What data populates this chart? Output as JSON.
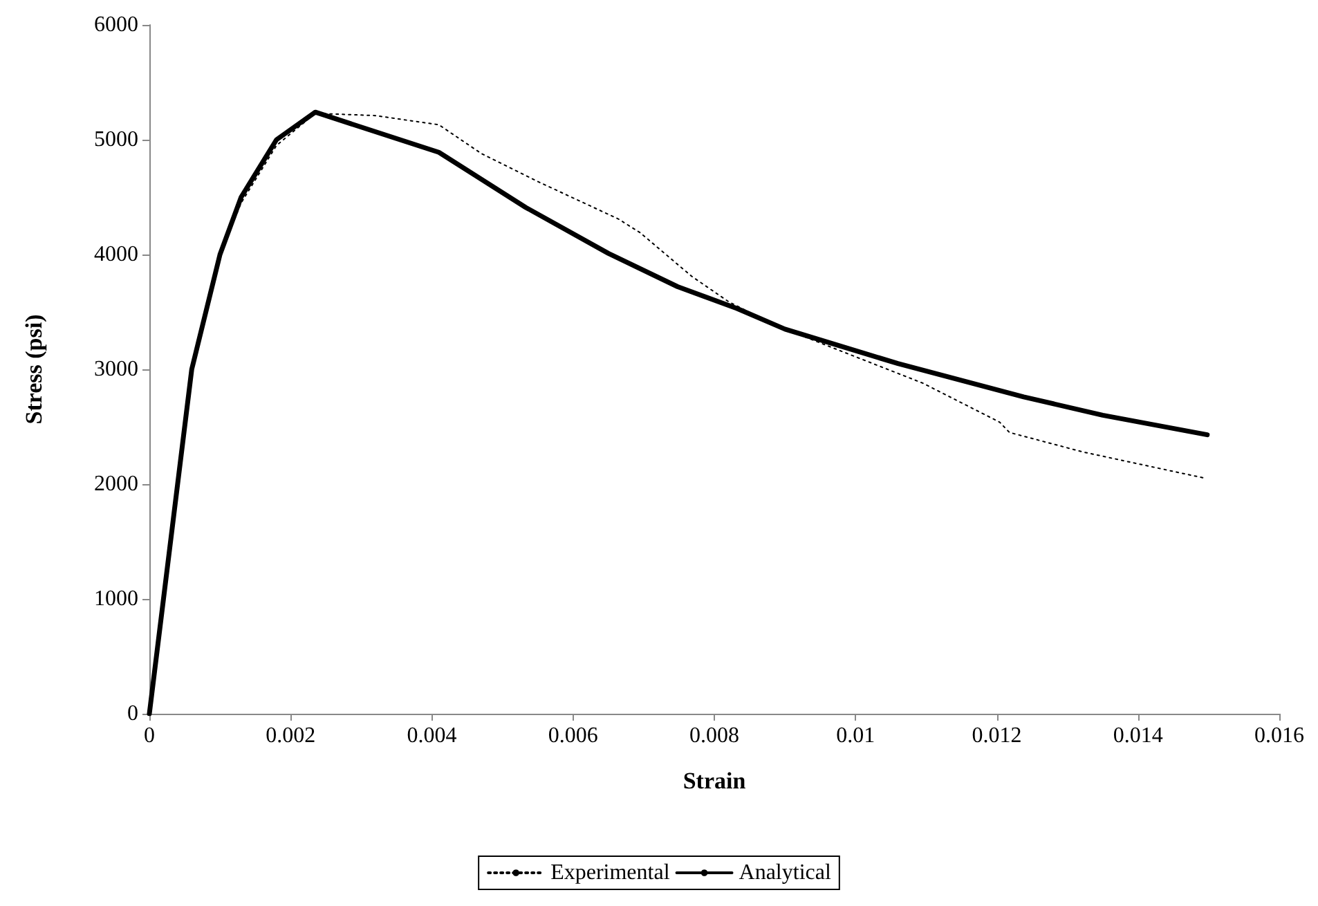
{
  "chart_data": {
    "type": "line",
    "xlabel": "Strain",
    "ylabel": "Stress (psi)",
    "xlim": [
      0,
      0.016
    ],
    "xticks": [
      0,
      0.002,
      0.004,
      0.006,
      0.008,
      0.01,
      0.012,
      0.014,
      0.016
    ],
    "ylim": [
      0,
      6000
    ],
    "yticks": [
      0,
      1000,
      2000,
      3000,
      4000,
      5000,
      6000
    ],
    "grid": false,
    "legend": "bottom",
    "marker": "none",
    "series": [
      {
        "name": "Experimental",
        "color": "#000000",
        "line_style": "dotted",
        "x": [
          0,
          0.0002,
          0.0004,
          0.0006,
          0.001,
          0.0013,
          0.0018,
          0.00235,
          0.0032,
          0.0041,
          0.0047,
          0.00552,
          0.00664,
          0.00695,
          0.00768,
          0.0082,
          0.0088,
          0.0095,
          0.01095,
          0.01204,
          0.01218,
          0.01322,
          0.01496
        ],
        "values": [
          0,
          1000,
          2000,
          3000,
          4000,
          4450,
          4950,
          5230,
          5210,
          5130,
          4880,
          4630,
          4310,
          4190,
          3810,
          3590,
          3400,
          3230,
          2880,
          2540,
          2450,
          2280,
          2050
        ]
      },
      {
        "name": "Analytical",
        "color": "#000000",
        "line_style": "solid",
        "x": [
          0,
          0.0002,
          0.0004,
          0.0006,
          0.001,
          0.0013,
          0.0018,
          0.00235,
          0.0041,
          0.00533,
          0.0065,
          0.00748,
          0.00832,
          0.009,
          0.0106,
          0.01238,
          0.0135,
          0.01498
        ],
        "values": [
          0,
          1000,
          2000,
          3000,
          4000,
          4500,
          5000,
          5240,
          4890,
          4410,
          4010,
          3720,
          3530,
          3350,
          3050,
          2760,
          2600,
          2430
        ]
      }
    ]
  }
}
